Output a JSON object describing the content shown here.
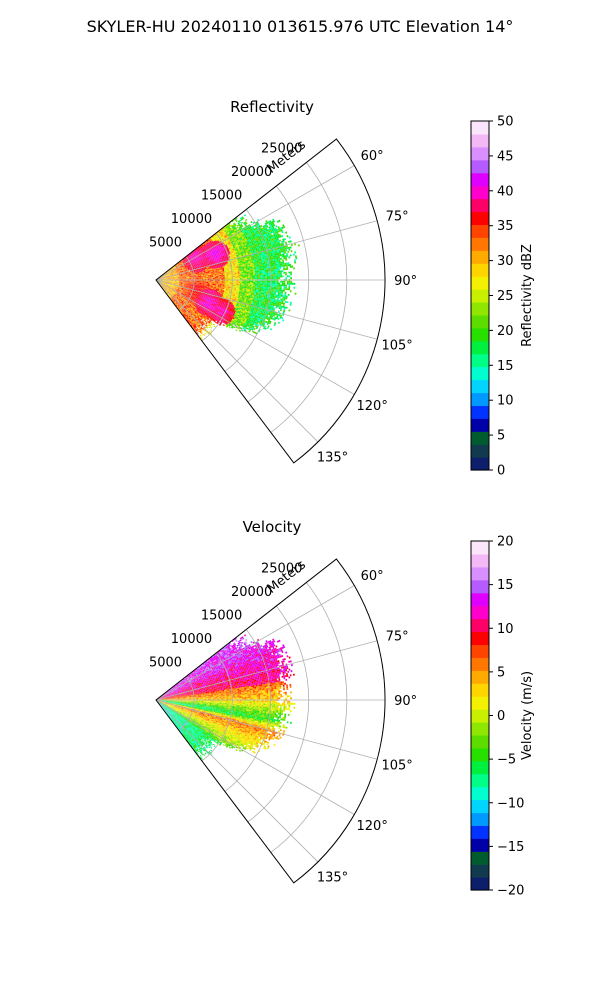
{
  "title": "SKYLER-HU  20240110  013615.976 UTC Elevation 14°",
  "chart_data": [
    {
      "type": "heatmap",
      "subtype": "polar-sector (radar PPI)",
      "title": "Reflectivity",
      "radial_label": "Meters",
      "radial_ticks": [
        5000,
        10000,
        15000,
        20000,
        25000
      ],
      "radial_tick_labels": [
        "5000",
        "10000",
        "15000",
        "20000",
        "25000"
      ],
      "radial_max": 30000,
      "azimuth_range_deg": [
        52,
        143
      ],
      "azimuth_ticks": [
        "60°",
        "75°",
        "90°",
        "105°",
        "120°",
        "135°"
      ],
      "grid": true,
      "colorbar": {
        "label": "Reflectivity dBZ",
        "min": 0,
        "max": 50,
        "ticks": [
          0,
          5,
          10,
          15,
          20,
          25,
          30,
          35,
          40,
          45,
          50
        ],
        "tick_labels": [
          "0",
          "5",
          "10",
          "15",
          "20",
          "25",
          "30",
          "35",
          "40",
          "45",
          "50"
        ],
        "colors": [
          "#0d1f6b",
          "#123a4f",
          "#005c2e",
          "#0000a8",
          "#0033ff",
          "#0099ff",
          "#00d4ff",
          "#00ffd0",
          "#00ff88",
          "#00f040",
          "#28e000",
          "#5ddc00",
          "#8fe600",
          "#c8f000",
          "#f5f000",
          "#ffd500",
          "#ffaa00",
          "#ff7700",
          "#ff4400",
          "#ff0000",
          "#ff0066",
          "#ff00cc",
          "#e000ff",
          "#b45cff",
          "#d98fff",
          "#f3b8f5",
          "#fbe5fb"
        ]
      },
      "echo": {
        "max_range_by_azimuth": [
          [
            57,
            13000
          ],
          [
            65,
            17000
          ],
          [
            75,
            18000
          ],
          [
            85,
            17000
          ],
          [
            92,
            17000
          ],
          [
            100,
            17000
          ],
          [
            110,
            16000
          ],
          [
            117,
            14500
          ],
          [
            121,
            12000
          ],
          [
            126,
            9000
          ]
        ],
        "bands": [
          {
            "r_max": 3000,
            "dbz": 30
          },
          {
            "r_max": 9000,
            "dbz": 33
          },
          {
            "r_max": 11000,
            "dbz": 28
          },
          {
            "r_max": 13000,
            "dbz": 22
          },
          {
            "r_max": 30000,
            "dbz": 18
          }
        ],
        "cores": [
          {
            "az": 62,
            "r": 6000,
            "dbz": 40
          },
          {
            "az": 67,
            "r": 8500,
            "dbz": 41
          },
          {
            "az": 105,
            "r": 5500,
            "dbz": 37
          },
          {
            "az": 113,
            "r": 7500,
            "dbz": 41
          },
          {
            "az": 116,
            "r": 9500,
            "dbz": 40
          }
        ]
      }
    },
    {
      "type": "heatmap",
      "subtype": "polar-sector (radar PPI)",
      "title": "Velocity",
      "radial_label": "Meters",
      "radial_ticks": [
        5000,
        10000,
        15000,
        20000,
        25000
      ],
      "radial_tick_labels": [
        "5000",
        "10000",
        "15000",
        "20000",
        "25000"
      ],
      "radial_max": 30000,
      "azimuth_range_deg": [
        52,
        143
      ],
      "azimuth_ticks": [
        "60°",
        "75°",
        "90°",
        "105°",
        "120°",
        "135°"
      ],
      "grid": true,
      "colorbar": {
        "label": "Velocity (m/s)",
        "min": -20,
        "max": 20,
        "ticks": [
          -20,
          -15,
          -10,
          -5,
          0,
          5,
          10,
          15,
          20
        ],
        "tick_labels": [
          "−20",
          "−15",
          "−10",
          "−5",
          "0",
          "5",
          "10",
          "15",
          "20"
        ],
        "colors": [
          "#0d1f6b",
          "#123a4f",
          "#005c2e",
          "#0000a8",
          "#0033ff",
          "#0099ff",
          "#00d4ff",
          "#00ffd0",
          "#00ff88",
          "#00f040",
          "#28e000",
          "#5ddc00",
          "#8fe600",
          "#c8f000",
          "#f5f000",
          "#ffd500",
          "#ffaa00",
          "#ff7700",
          "#ff4400",
          "#ff0000",
          "#ff0066",
          "#ff00cc",
          "#e000ff",
          "#b45cff",
          "#d98fff",
          "#f3b8f5",
          "#fbe5fb"
        ]
      },
      "echo": {
        "max_range_by_azimuth": [
          [
            57,
            13000
          ],
          [
            65,
            17000
          ],
          [
            75,
            17500
          ],
          [
            85,
            16500
          ],
          [
            92,
            17000
          ],
          [
            100,
            16500
          ],
          [
            110,
            15500
          ],
          [
            117,
            14000
          ],
          [
            121,
            12000
          ],
          [
            126,
            9000
          ]
        ],
        "velocity_by_azimuth": [
          [
            55,
            14
          ],
          [
            62,
            13
          ],
          [
            70,
            11
          ],
          [
            80,
            9
          ],
          [
            90,
            3
          ],
          [
            96,
            -5
          ],
          [
            100,
            -9
          ],
          [
            105,
            7
          ],
          [
            112,
            2
          ],
          [
            120,
            -3
          ],
          [
            126,
            -9
          ]
        ],
        "far_range_velocity": 14
      }
    }
  ]
}
